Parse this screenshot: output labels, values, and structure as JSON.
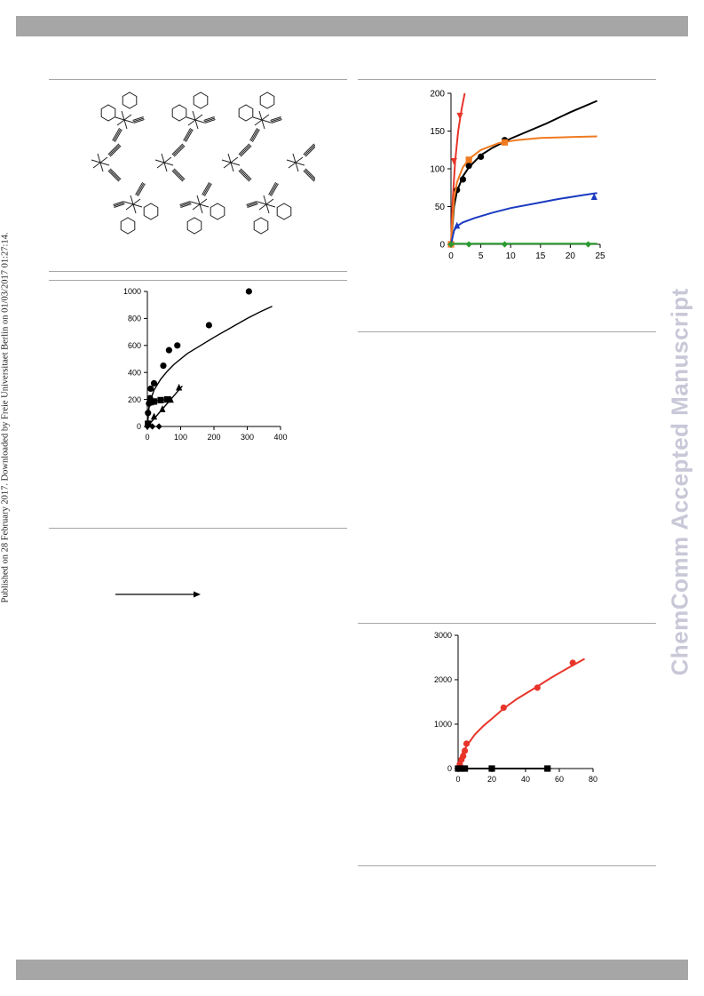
{
  "side_note": "Published on 28 February 2017. Downloaded by Freie Universitaet Berlin on 01/03/2017 01:27:14.",
  "watermark": "ChemComm Accepted Manuscript",
  "chart_data": [
    {
      "type": "scatter",
      "title": "",
      "xlabel": "",
      "ylabel": "",
      "xlim": [
        0,
        400
      ],
      "ylim": [
        0,
        1000
      ],
      "xticks": [
        0,
        100,
        200,
        300,
        400
      ],
      "yticks": [
        0,
        200,
        400,
        600,
        800,
        1000
      ],
      "series": [
        {
          "marker": "circle",
          "color": "#000000",
          "points": [
            [
              2,
              100
            ],
            [
              5,
              170
            ],
            [
              8,
              210
            ],
            [
              10,
              280
            ],
            [
              20,
              320
            ],
            [
              48,
              450
            ],
            [
              65,
              565
            ],
            [
              90,
              600
            ],
            [
              185,
              750
            ],
            [
              305,
              1000
            ]
          ],
          "fit": [
            [
              0,
              0
            ],
            [
              5,
              140
            ],
            [
              10,
              200
            ],
            [
              20,
              270
            ],
            [
              40,
              350
            ],
            [
              60,
              410
            ],
            [
              80,
              460
            ],
            [
              120,
              540
            ],
            [
              160,
              600
            ],
            [
              200,
              660
            ],
            [
              250,
              730
            ],
            [
              300,
              800
            ],
            [
              340,
              850
            ],
            [
              375,
              890
            ]
          ]
        },
        {
          "marker": "square",
          "color": "#000000",
          "points": [
            [
              2,
              20
            ],
            [
              10,
              180
            ],
            [
              20,
              185
            ],
            [
              40,
              195
            ],
            [
              60,
              200
            ]
          ],
          "fit": [
            [
              0,
              0
            ],
            [
              3,
              120
            ],
            [
              8,
              170
            ],
            [
              15,
              185
            ],
            [
              30,
              192
            ],
            [
              60,
              200
            ],
            [
              75,
              202
            ]
          ]
        },
        {
          "marker": "triangle",
          "color": "#000000",
          "points": [
            [
              5,
              20
            ],
            [
              20,
              75
            ],
            [
              45,
              130
            ],
            [
              70,
              200
            ],
            [
              95,
              290
            ]
          ],
          "fit": [
            [
              0,
              0
            ],
            [
              105,
              300
            ]
          ]
        },
        {
          "marker": "diamond",
          "color": "#000000",
          "points": [
            [
              0,
              0
            ],
            [
              15,
              0
            ],
            [
              35,
              0
            ]
          ],
          "fit": []
        }
      ]
    },
    {
      "type": "scatter",
      "title": "",
      "xlabel": "",
      "ylabel": "",
      "xlim": [
        0,
        25
      ],
      "ylim": [
        0,
        200
      ],
      "xticks": [
        0,
        5,
        10,
        15,
        20,
        25
      ],
      "yticks": [
        0,
        50,
        100,
        150,
        200
      ],
      "series": [
        {
          "marker": "triangle-down",
          "color": "#e8352a",
          "points": [
            [
              0,
              0
            ],
            [
              0.5,
              110
            ],
            [
              1.5,
              170
            ]
          ],
          "fit": [
            [
              0,
              0
            ],
            [
              0.3,
              60
            ],
            [
              0.7,
              110
            ],
            [
              1.2,
              150
            ],
            [
              1.8,
              180
            ],
            [
              2.3,
              200
            ]
          ]
        },
        {
          "marker": "circle",
          "color": "#000000",
          "points": [
            [
              0,
              0
            ],
            [
              1,
              72
            ],
            [
              2,
              86
            ],
            [
              3,
              104
            ],
            [
              5,
              116
            ],
            [
              9,
              138
            ]
          ],
          "fit": [
            [
              0,
              0
            ],
            [
              0.5,
              50
            ],
            [
              1,
              70
            ],
            [
              2,
              90
            ],
            [
              3,
              102
            ],
            [
              5,
              118
            ],
            [
              7,
              128
            ],
            [
              10,
              140
            ],
            [
              13,
              150
            ],
            [
              16,
              160
            ],
            [
              20,
              175
            ],
            [
              24.5,
              190
            ]
          ]
        },
        {
          "marker": "square",
          "color": "#f07a20",
          "points": [
            [
              0,
              0
            ],
            [
              3,
              112
            ],
            [
              9,
              135
            ]
          ],
          "fit": [
            [
              0,
              0
            ],
            [
              0.5,
              60
            ],
            [
              1,
              82
            ],
            [
              2,
              102
            ],
            [
              3,
              113
            ],
            [
              5,
              125
            ],
            [
              8,
              134
            ],
            [
              11,
              138
            ],
            [
              15,
              141
            ],
            [
              20,
              142
            ],
            [
              24.5,
              143
            ]
          ]
        },
        {
          "marker": "triangle",
          "color": "#1a3bc0",
          "points": [
            [
              1,
              25
            ],
            [
              24,
              63
            ]
          ],
          "fit": [
            [
              0,
              0
            ],
            [
              0.5,
              18
            ],
            [
              1,
              24
            ],
            [
              2,
              29
            ],
            [
              4,
              35
            ],
            [
              7,
              42
            ],
            [
              10,
              48
            ],
            [
              14,
              54
            ],
            [
              18,
              60
            ],
            [
              22,
              65
            ],
            [
              24.5,
              68
            ]
          ]
        },
        {
          "marker": "diamond",
          "color": "#2a9a30",
          "points": [
            [
              0,
              0
            ],
            [
              3,
              0
            ],
            [
              9,
              0
            ],
            [
              23,
              0
            ]
          ],
          "fit": [
            [
              0,
              1
            ],
            [
              24.5,
              1
            ]
          ]
        }
      ]
    },
    {
      "type": "scatter",
      "title": "",
      "xlabel": "",
      "ylabel": "",
      "xlim": [
        0,
        80
      ],
      "ylim": [
        0,
        3000
      ],
      "xticks": [
        0,
        20,
        40,
        60,
        80
      ],
      "yticks": [
        0,
        1000,
        2000,
        3000
      ],
      "series": [
        {
          "marker": "circle",
          "color": "#e8352a",
          "points": [
            [
              0,
              0
            ],
            [
              1,
              100
            ],
            [
              2,
              200
            ],
            [
              3,
              280
            ],
            [
              4,
              400
            ],
            [
              5,
              560
            ],
            [
              27,
              1370
            ],
            [
              47,
              1820
            ],
            [
              68,
              2380
            ]
          ],
          "fit": [
            [
              0,
              0
            ],
            [
              1,
              200
            ],
            [
              3,
              380
            ],
            [
              6,
              560
            ],
            [
              10,
              770
            ],
            [
              15,
              960
            ],
            [
              20,
              1120
            ],
            [
              27,
              1350
            ],
            [
              35,
              1570
            ],
            [
              45,
              1800
            ],
            [
              55,
              2040
            ],
            [
              65,
              2260
            ],
            [
              75,
              2470
            ]
          ]
        },
        {
          "marker": "square",
          "color": "#000000",
          "points": [
            [
              0,
              0
            ],
            [
              2,
              0
            ],
            [
              4,
              0
            ],
            [
              20,
              0
            ],
            [
              53,
              0
            ]
          ],
          "fit": [
            [
              0,
              0
            ],
            [
              55,
              0
            ]
          ]
        }
      ]
    }
  ]
}
